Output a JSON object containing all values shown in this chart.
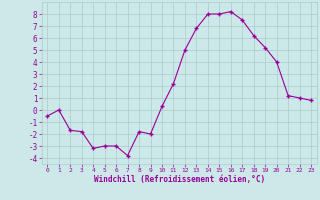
{
  "hours": [
    0,
    1,
    2,
    3,
    4,
    5,
    6,
    7,
    8,
    9,
    10,
    11,
    12,
    13,
    14,
    15,
    16,
    17,
    18,
    19,
    20,
    21,
    22,
    23
  ],
  "values": [
    -0.5,
    0.0,
    -1.7,
    -1.8,
    -3.2,
    -3.0,
    -3.0,
    -3.8,
    -1.8,
    -2.0,
    0.3,
    2.2,
    5.0,
    6.8,
    8.0,
    8.0,
    8.2,
    7.5,
    6.2,
    5.2,
    4.0,
    1.2,
    1.0,
    0.8
  ],
  "xlabel": "Windchill (Refroidissement éolien,°C)",
  "ylim": [
    -4.5,
    9.0
  ],
  "xlim": [
    -0.5,
    23.5
  ],
  "line_color": "#990099",
  "marker": "+",
  "bg_color": "#cce8e8",
  "grid_color": "#aacccc",
  "label_color": "#990099",
  "tick_color": "#990099",
  "yticks": [
    -4,
    -3,
    -2,
    -1,
    0,
    1,
    2,
    3,
    4,
    5,
    6,
    7,
    8
  ],
  "xticks": [
    0,
    1,
    2,
    3,
    4,
    5,
    6,
    7,
    8,
    9,
    10,
    11,
    12,
    13,
    14,
    15,
    16,
    17,
    18,
    19,
    20,
    21,
    22,
    23
  ]
}
